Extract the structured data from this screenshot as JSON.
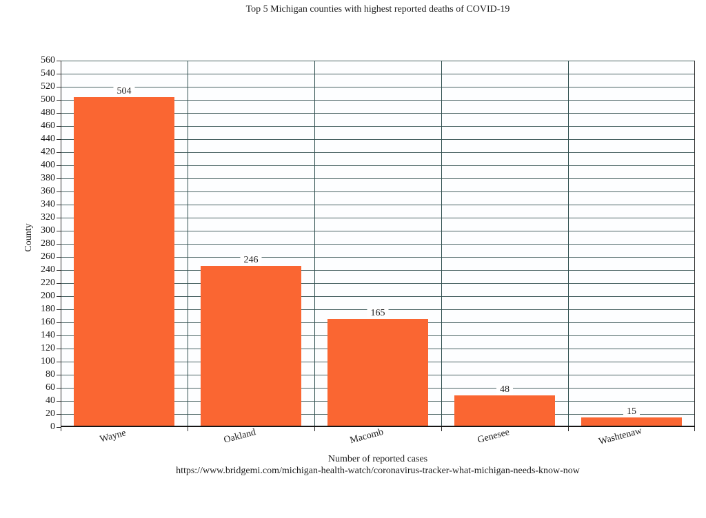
{
  "chart_data": {
    "type": "bar",
    "title": "Top 5 Michigan counties with highest reported deaths of COVID-19",
    "categories": [
      "Wayne",
      "Oakland",
      "Macomb",
      "Genesee",
      "Washtenaw"
    ],
    "values": [
      504,
      246,
      165,
      48,
      15
    ],
    "xlabel": "Number of reported cases",
    "ylabel": "County",
    "source_url": "https://www.bridgemi.com/michigan-health-watch/coronavirus-tracker-what-michigan-needs-know-now",
    "ylim": [
      0,
      560
    ],
    "ytick_step": 20,
    "grid": true,
    "legend_position": "none",
    "bar_color": "#FA6632",
    "grid_color": "#466060",
    "axis_color": "#2b2b2b",
    "text_color": "#1c1c1c"
  }
}
